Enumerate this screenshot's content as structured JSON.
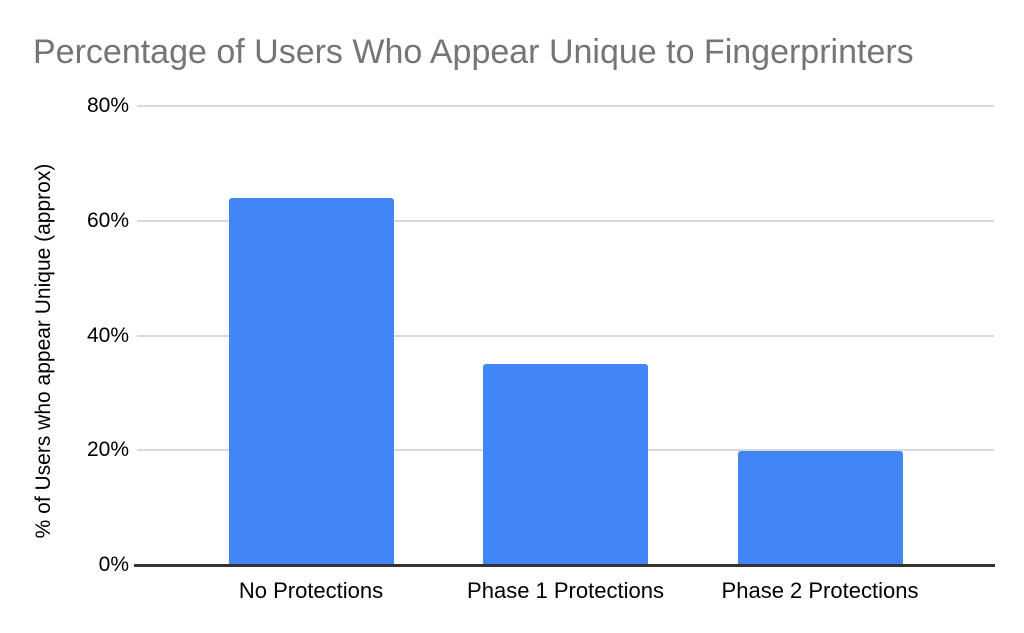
{
  "chart_data": {
    "type": "bar",
    "title": "Percentage of Users Who Appear Unique to Fingerprinters",
    "categories": [
      "No Protections",
      "Phase 1 Protections",
      "Phase 2 Protections"
    ],
    "values": [
      64,
      35,
      19.8
    ],
    "xlabel": "",
    "ylabel": "% of Users who appear Unique (approx)",
    "ylim": [
      0,
      80
    ],
    "yticks": [
      0,
      20,
      40,
      60,
      80
    ],
    "ytick_labels": [
      "0%",
      "20%",
      "40%",
      "60%",
      "80%"
    ],
    "grid": true,
    "legend_position": "none",
    "colors": {
      "bar": "#4285f4",
      "title": "#757575",
      "gridline": "#d9d9d9",
      "axis_line": "#333333",
      "tick_label": "#000000",
      "background": "#ffffff"
    }
  }
}
